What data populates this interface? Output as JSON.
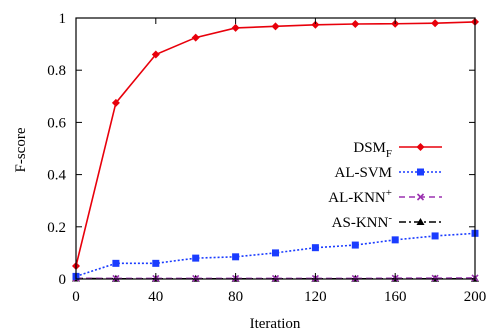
{
  "chart_data": {
    "type": "line",
    "title": "",
    "xlabel": "Iteration",
    "ylabel": "F-score",
    "xlim": [
      0,
      200
    ],
    "ylim": [
      0,
      1
    ],
    "xticks": [
      0,
      40,
      80,
      120,
      160,
      200
    ],
    "yticks": [
      0,
      0.2,
      0.4,
      0.6,
      0.8,
      1
    ],
    "ytick_labels": [
      "0",
      "0.2",
      "0.4",
      "0.6",
      "0.8",
      "1"
    ],
    "grid": false,
    "legend_position": "right",
    "series": [
      {
        "name": "DSM",
        "name_subscript": "F",
        "color": "#e8000b",
        "marker": "diamond",
        "line_style": "solid",
        "x": [
          0,
          20,
          40,
          60,
          80,
          100,
          120,
          140,
          160,
          180,
          200
        ],
        "y": [
          0.05,
          0.675,
          0.86,
          0.925,
          0.962,
          0.968,
          0.974,
          0.977,
          0.978,
          0.98,
          0.985
        ]
      },
      {
        "name": "AL-SVM",
        "color": "#1a3cff",
        "marker": "square",
        "line_style": "dotted",
        "x": [
          0,
          20,
          40,
          60,
          80,
          100,
          120,
          140,
          160,
          180,
          200
        ],
        "y": [
          0.01,
          0.06,
          0.06,
          0.08,
          0.085,
          0.1,
          0.12,
          0.13,
          0.15,
          0.165,
          0.175
        ]
      },
      {
        "name": "AL-KNN",
        "name_superscript": "+",
        "color": "#9b30b0",
        "marker": "x",
        "line_style": "dashed",
        "x": [
          0,
          20,
          40,
          60,
          80,
          100,
          120,
          140,
          160,
          180,
          200
        ],
        "y": [
          0.003,
          0.002,
          0.002,
          0.002,
          0.002,
          0.002,
          0.002,
          0.002,
          0.003,
          0.003,
          0.004
        ]
      },
      {
        "name": "AS-KNN",
        "name_superscript": "-",
        "color": "#000000",
        "marker": "triangle",
        "line_style": "dashdot",
        "x": [
          0,
          20,
          40,
          60,
          80,
          100,
          120,
          140,
          160,
          180,
          200
        ],
        "y": [
          0.002,
          0.001,
          0.001,
          0.001,
          0.001,
          0.001,
          0.001,
          0.001,
          0.001,
          0.001,
          0.001
        ]
      }
    ]
  }
}
